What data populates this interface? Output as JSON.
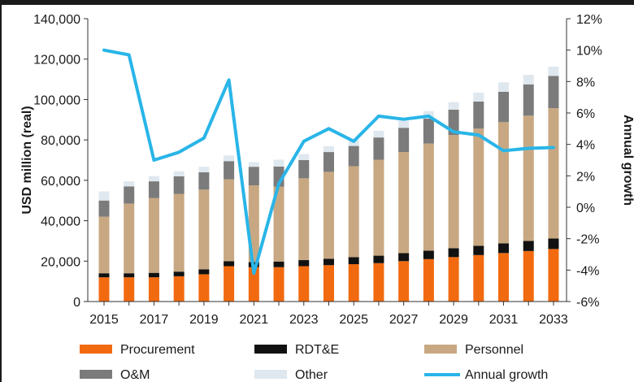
{
  "chart_data": {
    "type": "bar",
    "stacked": true,
    "categories": [
      "2015",
      "2016",
      "2017",
      "2018",
      "2019",
      "2020",
      "2021",
      "2022",
      "2023",
      "2024",
      "2025",
      "2026",
      "2027",
      "2028",
      "2029",
      "2030",
      "2031",
      "2032",
      "2033"
    ],
    "x_tick_labels": [
      "2015",
      "2017",
      "2019",
      "2021",
      "2023",
      "2025",
      "2027",
      "2029",
      "2031",
      "2033"
    ],
    "series": [
      {
        "name": "Procurement",
        "color": "#f26a10",
        "values": [
          12000,
          12000,
          12000,
          12500,
          13500,
          17500,
          17000,
          17000,
          17500,
          18000,
          18500,
          19000,
          20000,
          21000,
          22000,
          23000,
          24000,
          25000,
          26000
        ]
      },
      {
        "name": "RDT&E",
        "color": "#111111",
        "values": [
          2000,
          2000,
          2200,
          2300,
          2400,
          2500,
          2500,
          2800,
          3000,
          3200,
          3500,
          3700,
          4000,
          4200,
          4400,
          4600,
          4800,
          5000,
          5200
        ]
      },
      {
        "name": "Personnel",
        "color": "#c8a882",
        "values": [
          28000,
          34500,
          37000,
          38500,
          39500,
          40500,
          38000,
          37000,
          40500,
          43000,
          45000,
          47500,
          50000,
          53000,
          56000,
          58000,
          60000,
          62000,
          64500
        ]
      },
      {
        "name": "O&M",
        "color": "#7b7b7b",
        "values": [
          8000,
          8500,
          8300,
          8700,
          8600,
          9000,
          9200,
          10000,
          9000,
          9800,
          10000,
          11000,
          12000,
          12300,
          12600,
          13400,
          15000,
          15500,
          16000
        ]
      },
      {
        "name": "Other",
        "color": "#dfe8ef",
        "values": [
          4500,
          2500,
          2600,
          2500,
          2700,
          2800,
          2300,
          3400,
          3000,
          2900,
          3000,
          3300,
          3500,
          3800,
          3700,
          4400,
          4700,
          4700,
          4600
        ]
      }
    ],
    "line_series": {
      "name": "Annual growth",
      "color": "#29b5e8",
      "values": [
        10.0,
        9.7,
        3.0,
        3.5,
        4.4,
        8.1,
        -4.2,
        1.5,
        4.2,
        5.0,
        4.2,
        5.8,
        5.6,
        5.8,
        4.8,
        4.6,
        3.6,
        3.75,
        3.8
      ]
    },
    "ylabel": "USD million (real)",
    "ylim": [
      0,
      140000
    ],
    "y_ticks": [
      "0",
      "20,000",
      "40,000",
      "60,000",
      "80,000",
      "100,000",
      "120,000",
      "140,000"
    ],
    "y2label": "Annual growth",
    "y2lim": [
      -6,
      12
    ],
    "y2_ticks": [
      "-6%",
      "-4%",
      "-2%",
      "0%",
      "2%",
      "4%",
      "6%",
      "8%",
      "10%",
      "12%"
    ],
    "legend_position": "bottom",
    "grid": false
  }
}
